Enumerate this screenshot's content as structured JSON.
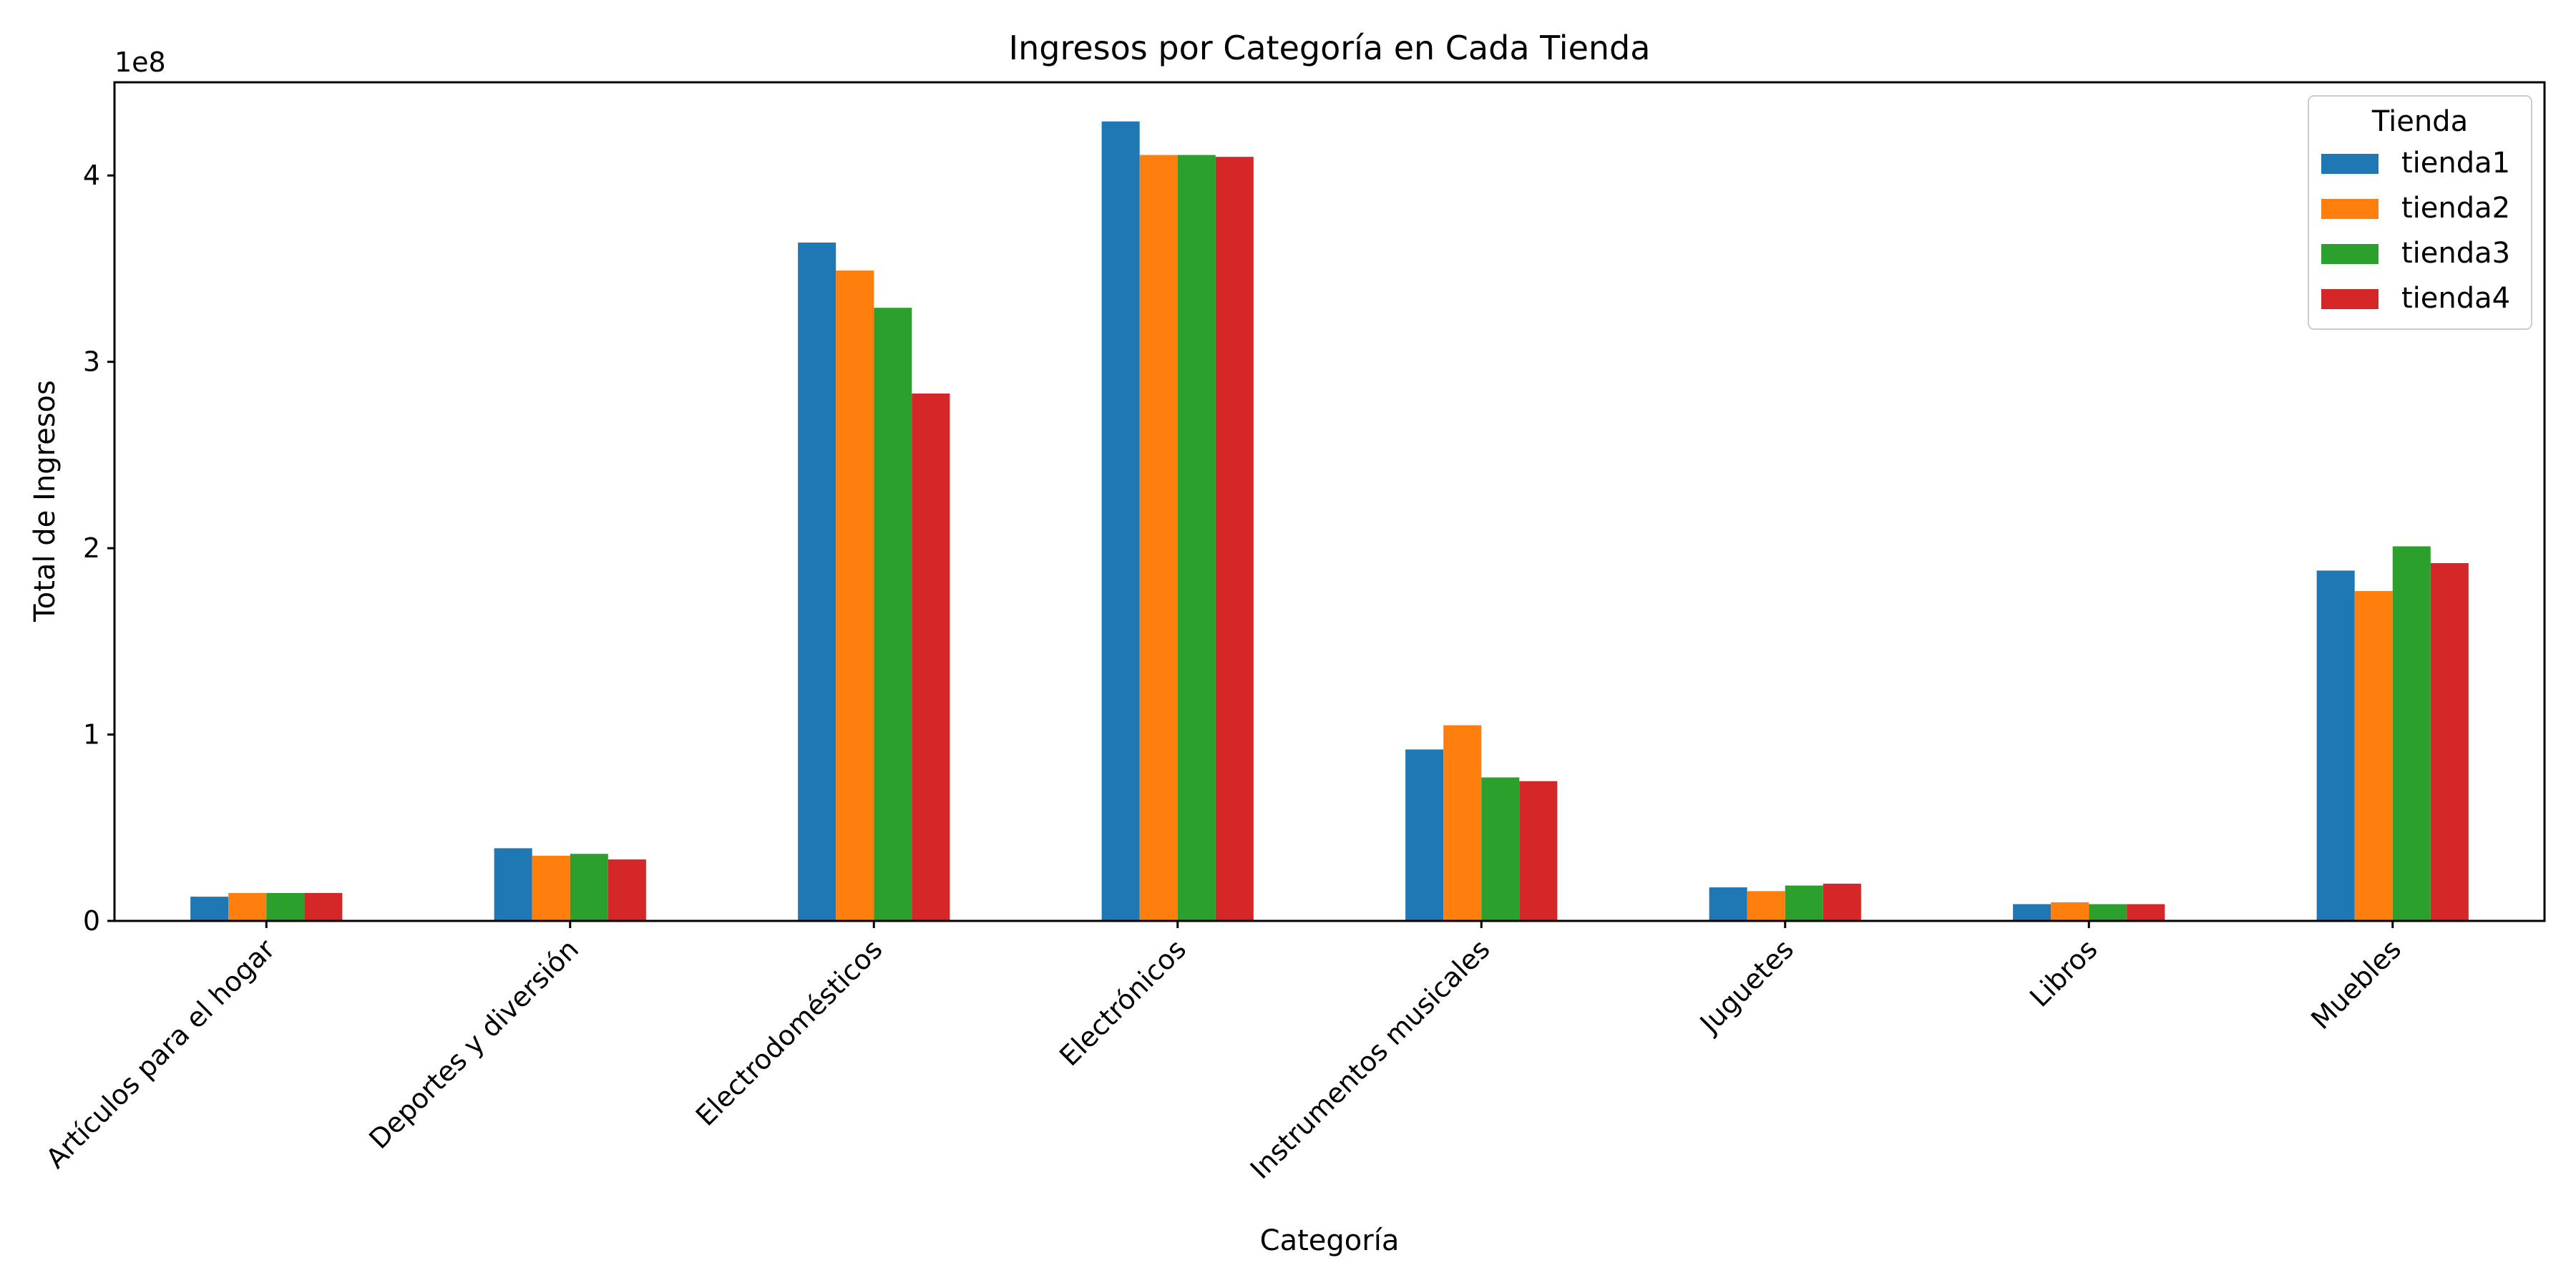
{
  "chart_data": {
    "type": "bar",
    "title": "Ingresos por Categoría en Cada Tienda",
    "xlabel": "Categoría",
    "ylabel": "Total de Ingresos",
    "y_offset_label": "1e8",
    "y_scale_factor": 100000000,
    "ylim": [
      0,
      4.5
    ],
    "yticks": [
      0,
      1,
      2,
      3,
      4
    ],
    "grid": false,
    "legend_title": "Tienda",
    "legend_position": "top-right",
    "categories": [
      "Artículos para el hogar",
      "Deportes y diversión",
      "Electrodomésticos",
      "Electrónicos",
      "Instrumentos musicales",
      "Juguetes",
      "Libros",
      "Muebles"
    ],
    "series": [
      {
        "name": "tienda1",
        "color": "#1f77b4",
        "values": [
          0.13,
          0.39,
          3.64,
          4.29,
          0.92,
          0.18,
          0.09,
          1.88
        ]
      },
      {
        "name": "tienda2",
        "color": "#ff7f0e",
        "values": [
          0.15,
          0.35,
          3.49,
          4.11,
          1.05,
          0.16,
          0.1,
          1.77
        ]
      },
      {
        "name": "tienda3",
        "color": "#2ca02c",
        "values": [
          0.15,
          0.36,
          3.29,
          4.11,
          0.77,
          0.19,
          0.09,
          2.01
        ]
      },
      {
        "name": "tienda4",
        "color": "#d62728",
        "values": [
          0.15,
          0.33,
          2.83,
          4.1,
          0.75,
          0.2,
          0.09,
          1.92
        ]
      }
    ]
  }
}
